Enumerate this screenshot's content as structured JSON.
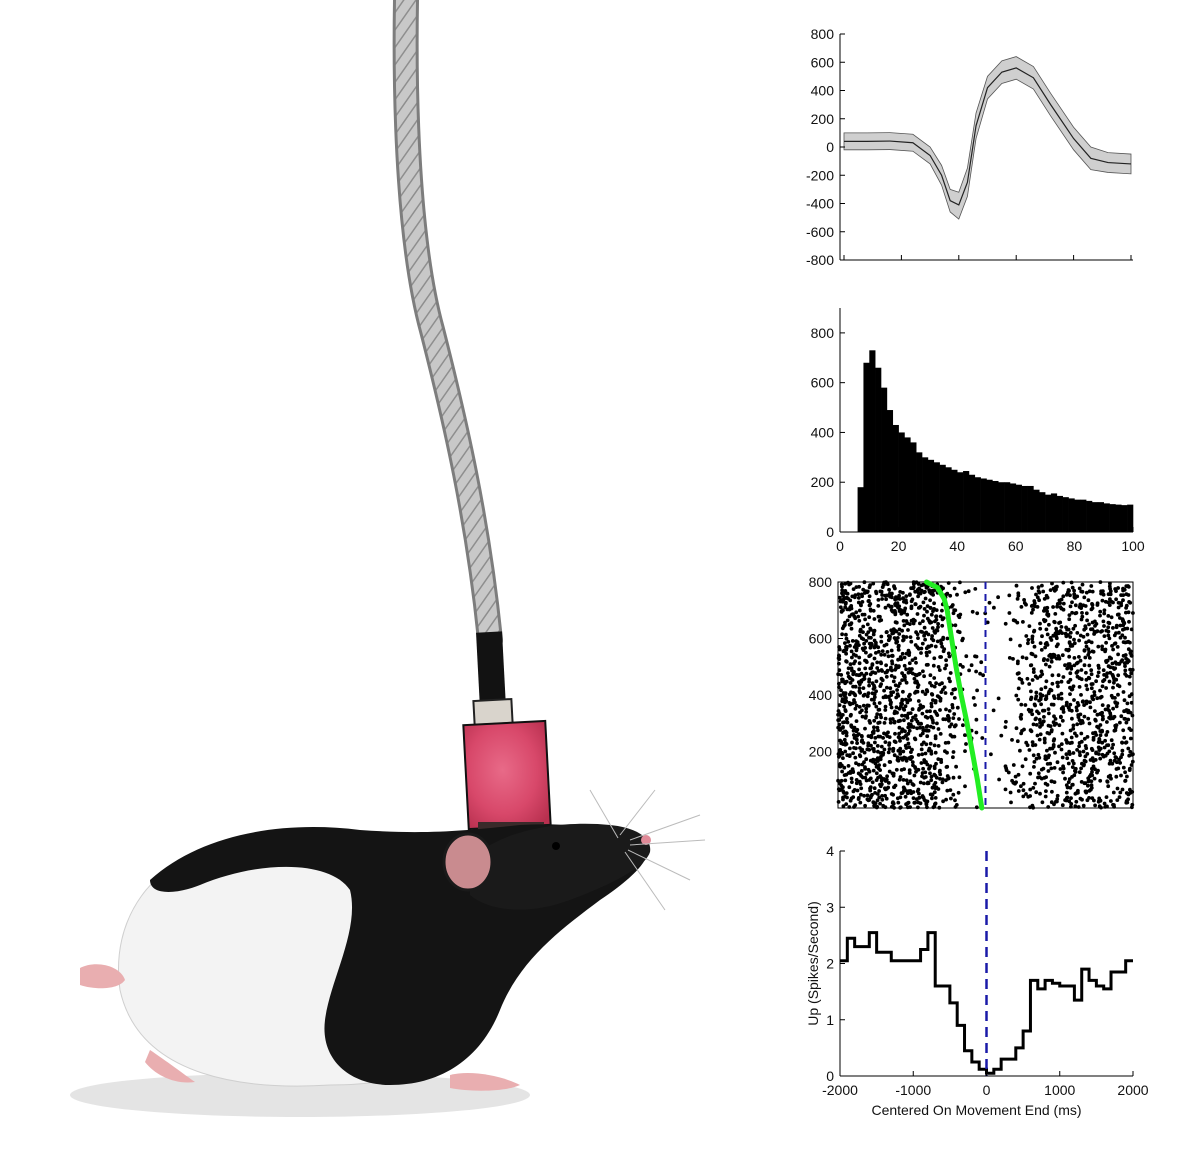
{
  "illustration": {
    "subject": "rat with head-mounted recording connector and tether cable",
    "colors": {
      "cable": "#bdbdbd",
      "connector": "#d8486a",
      "fur_dark": "#141414",
      "fur_light": "#f2f2f2",
      "skin": "#e9aeb0"
    }
  },
  "chart_data": [
    {
      "type": "line",
      "panel": "waveform",
      "xlim": [
        0,
        100
      ],
      "ylim": [
        -800,
        800
      ],
      "yticks": [
        "800",
        "600",
        "400",
        "200",
        "0",
        "-200",
        "-400",
        "-600",
        "-800"
      ],
      "xticks_labeled": false,
      "mean_color": "#222222",
      "band_color": "#cfcfcf",
      "x": [
        0,
        8,
        16,
        24,
        30,
        34,
        37,
        40,
        43,
        46,
        50,
        55,
        60,
        66,
        72,
        80,
        86,
        92,
        100
      ],
      "mean": [
        40,
        40,
        42,
        30,
        -60,
        -200,
        -380,
        -410,
        -250,
        150,
        420,
        530,
        560,
        490,
        300,
        60,
        -80,
        -110,
        -120
      ],
      "upper": [
        100,
        100,
        102,
        90,
        0,
        -130,
        -300,
        -320,
        -150,
        240,
        500,
        610,
        640,
        570,
        380,
        140,
        0,
        -40,
        -50
      ],
      "lower": [
        -20,
        -20,
        -18,
        -30,
        -120,
        -270,
        -460,
        -510,
        -350,
        60,
        340,
        450,
        480,
        410,
        220,
        -20,
        -160,
        -180,
        -190
      ]
    },
    {
      "type": "bar",
      "panel": "inter-spike-interval histogram",
      "xlim": [
        0,
        100
      ],
      "ylim": [
        0,
        900
      ],
      "xticks": [
        "0",
        "20",
        "40",
        "60",
        "80",
        "100"
      ],
      "yticks": [
        "0",
        "200",
        "400",
        "600",
        "800"
      ],
      "bin_width": 2,
      "bin_starts": [
        6,
        8,
        10,
        12,
        14,
        16,
        18,
        20,
        22,
        24,
        26,
        28,
        30,
        32,
        34,
        36,
        38,
        40,
        42,
        44,
        46,
        48,
        50,
        52,
        54,
        56,
        58,
        60,
        62,
        64,
        66,
        68,
        70,
        72,
        74,
        76,
        78,
        80,
        82,
        84,
        86,
        88,
        90,
        92,
        94,
        96,
        98
      ],
      "values": [
        180,
        680,
        730,
        660,
        580,
        490,
        430,
        400,
        380,
        360,
        320,
        300,
        290,
        280,
        270,
        260,
        250,
        240,
        245,
        230,
        220,
        215,
        210,
        205,
        200,
        200,
        195,
        190,
        185,
        185,
        170,
        160,
        150,
        155,
        145,
        140,
        135,
        130,
        130,
        125,
        120,
        120,
        115,
        112,
        110,
        108,
        110
      ],
      "color": "#000000"
    },
    {
      "type": "scatter",
      "panel": "spike raster",
      "xlim": [
        -2000,
        2000
      ],
      "ylim": [
        0,
        800
      ],
      "yticks": [
        "200",
        "400",
        "600",
        "800"
      ],
      "trial_count": 800,
      "event_marker_x": 0,
      "event_marker_color": "#1a1aa8",
      "spike_color": "#000000",
      "movement_start_color": "#22ee22",
      "movement_start": {
        "trial": [
          800,
          780,
          740,
          700,
          600,
          500,
          400,
          300,
          200,
          100,
          0
        ],
        "x": [
          -800,
          -650,
          -560,
          -520,
          -460,
          -400,
          -330,
          -250,
          -180,
          -110,
          -50
        ]
      },
      "spike_density_profile": {
        "x": [
          -2000,
          -1500,
          -1000,
          -750,
          -500,
          -250,
          0,
          250,
          500,
          750,
          1000,
          1500,
          2000
        ],
        "rate": [
          2.3,
          2.3,
          2.1,
          2.0,
          0.9,
          0.3,
          0.05,
          0.1,
          0.8,
          1.6,
          1.6,
          1.7,
          1.9
        ]
      }
    },
    {
      "type": "line",
      "panel": "peri-event firing rate",
      "xlim": [
        -2000,
        2000
      ],
      "ylim": [
        0,
        4
      ],
      "xticks": [
        "-2000",
        "-1000",
        "0",
        "1000",
        "2000"
      ],
      "yticks": [
        "0",
        "1",
        "2",
        "3",
        "4"
      ],
      "xlabel": "Centered On Movement End (ms)",
      "ylabel": "Up (Spikes/Second)",
      "step": true,
      "line_color": "#000000",
      "event_marker_x": 0,
      "event_marker_color": "#1a1aa8",
      "bin_width": 100,
      "x": [
        -2000,
        -1900,
        -1800,
        -1700,
        -1600,
        -1500,
        -1400,
        -1300,
        -1200,
        -1100,
        -1000,
        -900,
        -800,
        -700,
        -600,
        -500,
        -400,
        -300,
        -200,
        -100,
        0,
        100,
        200,
        300,
        400,
        500,
        600,
        700,
        800,
        900,
        1000,
        1100,
        1200,
        1300,
        1400,
        1500,
        1600,
        1700,
        1800,
        1900
      ],
      "y": [
        2.05,
        2.45,
        2.3,
        2.3,
        2.55,
        2.2,
        2.2,
        2.05,
        2.05,
        2.05,
        2.05,
        2.25,
        2.55,
        1.6,
        1.6,
        1.3,
        0.9,
        0.45,
        0.25,
        0.12,
        0.05,
        0.12,
        0.3,
        0.3,
        0.5,
        0.8,
        1.7,
        1.55,
        1.7,
        1.65,
        1.6,
        1.6,
        1.35,
        1.9,
        1.7,
        1.6,
        1.55,
        1.85,
        1.85,
        2.05
      ]
    }
  ]
}
